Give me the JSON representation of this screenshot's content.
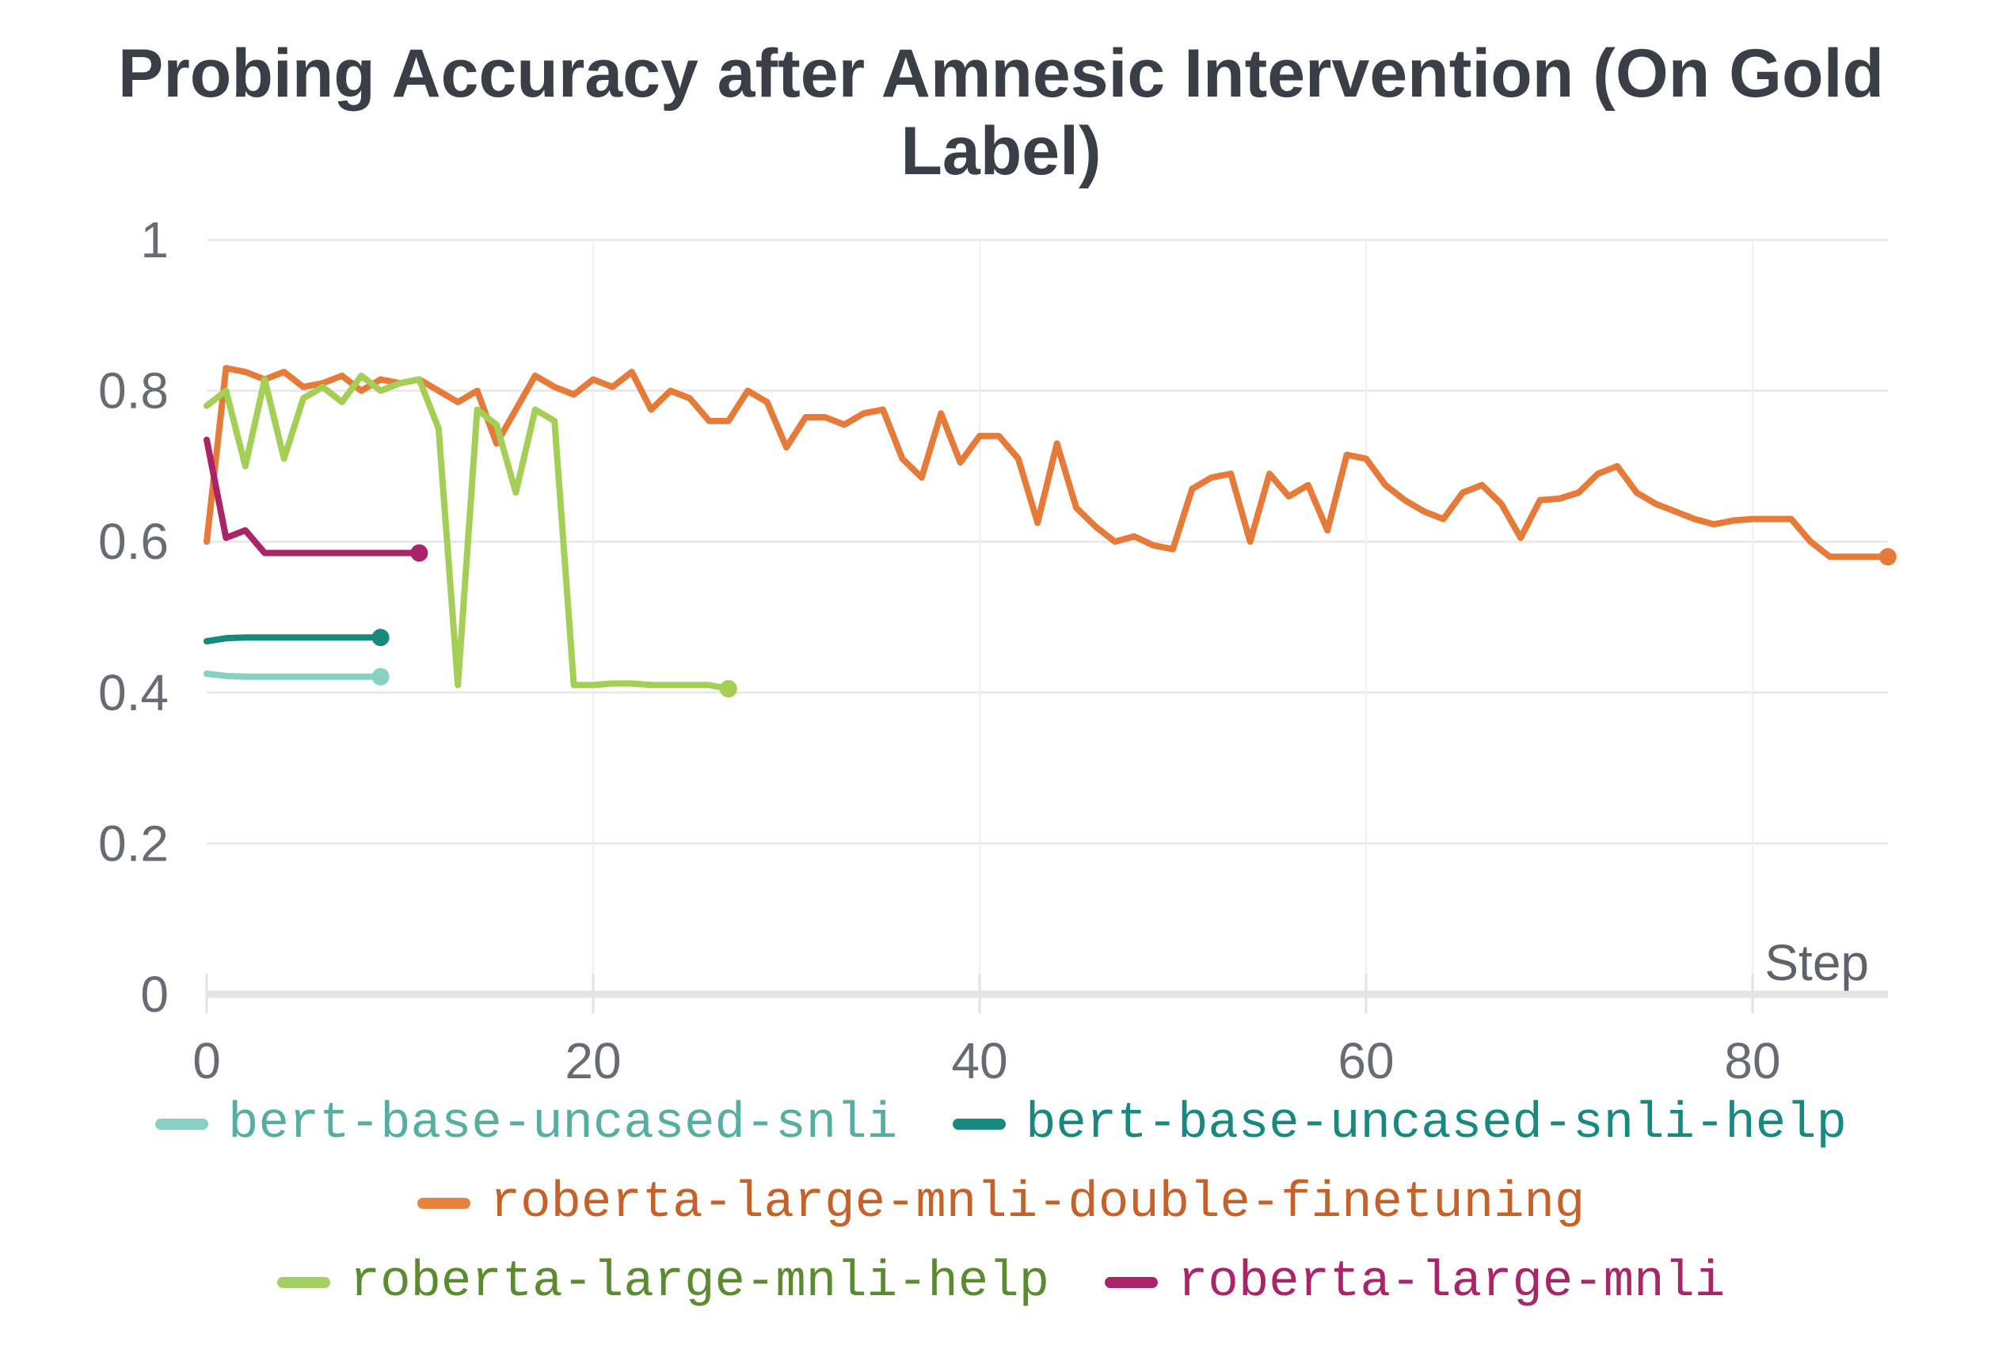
{
  "chart_data": {
    "type": "line",
    "title": "Probing Accuracy after Amnesic Intervention (On Gold Label)",
    "xlabel": "Step",
    "ylabel": "",
    "xlim": [
      0,
      87
    ],
    "ylim": [
      0,
      1
    ],
    "grid": true,
    "legend_position": "bottom",
    "x_tick_values": [
      0,
      20,
      40,
      60,
      80
    ],
    "x_tick_labels": [
      "0",
      "20",
      "40",
      "60",
      "80"
    ],
    "y_tick_values": [
      0,
      0.2,
      0.4,
      0.6,
      0.8,
      1
    ],
    "y_tick_labels": [
      "0",
      "0.2",
      "0.4",
      "0.6",
      "0.8",
      "1"
    ],
    "x_step_size": 1,
    "series": [
      {
        "name": "bert-base-uncased-snli",
        "color": "#87d1c3",
        "values": [
          0.425,
          0.422,
          0.421,
          0.421,
          0.421,
          0.421,
          0.421,
          0.421,
          0.421,
          0.421
        ]
      },
      {
        "name": "bert-base-uncased-snli-help",
        "color": "#17897e",
        "values": [
          0.468,
          0.472,
          0.473,
          0.473,
          0.473,
          0.473,
          0.473,
          0.473,
          0.473,
          0.473
        ]
      },
      {
        "name": "roberta-large-mnli-double-finetuning",
        "color": "#e67a39",
        "values": [
          0.6,
          0.83,
          0.825,
          0.815,
          0.825,
          0.805,
          0.81,
          0.82,
          0.8,
          0.815,
          0.81,
          0.815,
          0.8,
          0.785,
          0.8,
          0.73,
          0.775,
          0.82,
          0.805,
          0.795,
          0.815,
          0.805,
          0.825,
          0.775,
          0.8,
          0.79,
          0.76,
          0.76,
          0.8,
          0.785,
          0.725,
          0.765,
          0.765,
          0.755,
          0.77,
          0.775,
          0.71,
          0.685,
          0.77,
          0.705,
          0.74,
          0.74,
          0.71,
          0.625,
          0.73,
          0.645,
          0.62,
          0.6,
          0.607,
          0.595,
          0.59,
          0.67,
          0.685,
          0.69,
          0.6,
          0.69,
          0.66,
          0.675,
          0.615,
          0.715,
          0.71,
          0.675,
          0.655,
          0.64,
          0.63,
          0.665,
          0.675,
          0.65,
          0.605,
          0.655,
          0.657,
          0.665,
          0.69,
          0.7,
          0.665,
          0.65,
          0.64,
          0.63,
          0.623,
          0.628,
          0.63,
          0.63,
          0.63,
          0.6,
          0.58,
          0.58,
          0.58,
          0.58
        ]
      },
      {
        "name": "roberta-large-mnli-help",
        "color": "#a5ce56",
        "values": [
          0.78,
          0.8,
          0.7,
          0.815,
          0.71,
          0.79,
          0.805,
          0.785,
          0.82,
          0.8,
          0.81,
          0.815,
          0.75,
          0.41,
          0.775,
          0.755,
          0.665,
          0.775,
          0.76,
          0.41,
          0.41,
          0.412,
          0.412,
          0.41,
          0.41,
          0.41,
          0.41,
          0.405
        ]
      },
      {
        "name": "roberta-large-mnli",
        "color": "#aa2568",
        "values": [
          0.735,
          0.605,
          0.615,
          0.585,
          0.585,
          0.585,
          0.585,
          0.585,
          0.585,
          0.585,
          0.585,
          0.585
        ]
      }
    ]
  },
  "legend": {
    "items": [
      {
        "label": "bert-base-uncased-snli",
        "color": "#87d1c3",
        "text_color": "#55aea0"
      },
      {
        "label": "bert-base-uncased-snli-help",
        "color": "#17897e",
        "text_color": "#17897e"
      },
      {
        "label": "roberta-large-mnli-double-finetuning",
        "color": "#e8823f",
        "text_color": "#c4622a"
      },
      {
        "label": "roberta-large-mnli-help",
        "color": "#a6cf63",
        "text_color": "#5c8a2e"
      },
      {
        "label": "roberta-large-mnli",
        "color": "#aa2568",
        "text_color": "#aa2568"
      }
    ]
  },
  "axis": {
    "step_label": "Step",
    "tick_color": "#666b74",
    "step_label_color": "#5e626b",
    "hgrid_color": "#e9e9e9",
    "vgrid_color": "#f0f0f0",
    "axis_band_color": "#e3e3e3"
  },
  "colors": {
    "background": "#ffffff",
    "title": "#3a3e46"
  }
}
